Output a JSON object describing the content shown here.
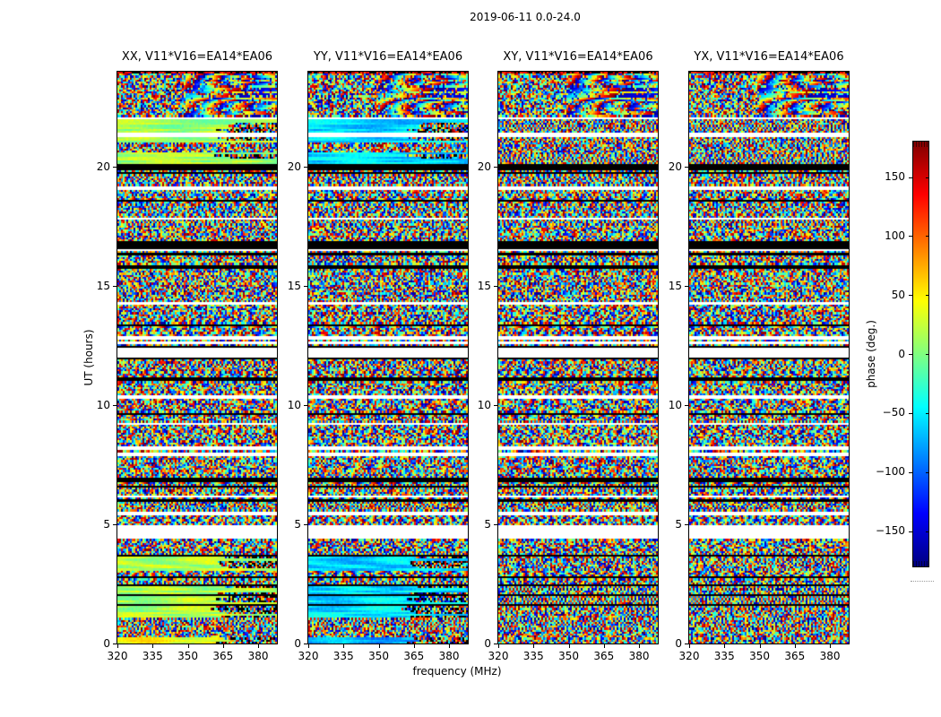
{
  "figure": {
    "title": "2019-06-11 0.0-24.0"
  },
  "axes": {
    "xlabel": "frequency (MHz)",
    "ylabel": "UT (hours)",
    "x_ticks": [
      "320",
      "335",
      "350",
      "365",
      "380"
    ],
    "y_ticks": [
      "0",
      "5",
      "10",
      "15",
      "20"
    ]
  },
  "panels": [
    {
      "title": "XX, V11*V16=EA14*EA06",
      "pol": "XX"
    },
    {
      "title": "YY, V11*V16=EA14*EA06",
      "pol": "YY"
    },
    {
      "title": "XY, V11*V16=EA14*EA06",
      "pol": "XY"
    },
    {
      "title": "YX, V11*V16=EA14*EA06",
      "pol": "YX"
    }
  ],
  "colorbar": {
    "label": "phase (deg.)",
    "ticks": [
      "150",
      "100",
      "50",
      "0",
      "−50",
      "−100",
      "−150"
    ],
    "tick_values": [
      150,
      100,
      50,
      0,
      -50,
      -100,
      -150
    ],
    "colormap": "jet",
    "vmin_deg": -180,
    "vmax_deg": 180
  },
  "chart_data": {
    "type": "heatmap",
    "title": "2019-06-11 0.0-24.0",
    "xlabel": "frequency (MHz)",
    "ylabel": "UT (hours)",
    "x_range_mhz": [
      320,
      388
    ],
    "y_range_hours": [
      0,
      24
    ],
    "x_ticks_mhz": [
      320,
      335,
      350,
      365,
      380
    ],
    "y_ticks_hours": [
      0,
      5,
      10,
      15,
      20
    ],
    "colormap": "jet",
    "clim_deg": [
      -180,
      180
    ],
    "value_quantity": "visibility phase (deg.)",
    "baseline": "V11*V16=EA14*EA06",
    "date": "2019-06-11",
    "time_span_hours": "0.0-24.0",
    "panel_labels": [
      "XX, V11*V16=EA14*EA06",
      "YY, V11*V16=EA14*EA06",
      "XY, V11*V16=EA14*EA06",
      "YX, V11*V16=EA14*EA06"
    ],
    "features": [
      {
        "from": 0.0,
        "to": 0.25,
        "type": "band",
        "xx": 40,
        "yy": -75
      },
      {
        "from": 0.25,
        "to": 1.05,
        "type": "noise"
      },
      {
        "from": 1.05,
        "to": 2.4,
        "type": "band",
        "xx": 15,
        "yy": -55
      },
      {
        "from": 1.55,
        "to": 1.63,
        "type": "black"
      },
      {
        "from": 1.95,
        "to": 2.02,
        "type": "black"
      },
      {
        "from": 2.4,
        "to": 2.52,
        "type": "black"
      },
      {
        "from": 2.52,
        "to": 3.05,
        "type": "noise"
      },
      {
        "from": 3.05,
        "to": 3.62,
        "type": "band",
        "xx": 18,
        "yy": -60
      },
      {
        "from": 3.62,
        "to": 3.7,
        "type": "black"
      },
      {
        "from": 3.7,
        "to": 4.38,
        "type": "noise"
      },
      {
        "from": 4.38,
        "to": 4.95,
        "type": "white"
      },
      {
        "from": 4.95,
        "to": 12.0,
        "type": "noise"
      },
      {
        "from": 5.42,
        "to": 5.5,
        "type": "white"
      },
      {
        "from": 6.1,
        "to": 6.17,
        "type": "white"
      },
      {
        "from": 6.8,
        "to": 6.87,
        "type": "black"
      },
      {
        "from": 7.9,
        "to": 7.97,
        "type": "white"
      },
      {
        "from": 8.15,
        "to": 8.21,
        "type": "white"
      },
      {
        "from": 9.6,
        "to": 9.67,
        "type": "black"
      },
      {
        "from": 10.3,
        "to": 10.37,
        "type": "white"
      },
      {
        "from": 11.0,
        "to": 11.1,
        "type": "black"
      },
      {
        "from": 11.9,
        "to": 12.0,
        "type": "black"
      },
      {
        "from": 12.0,
        "to": 12.38,
        "type": "white"
      },
      {
        "from": 12.38,
        "to": 12.48,
        "type": "black"
      },
      {
        "from": 12.48,
        "to": 16.3,
        "type": "noise"
      },
      {
        "from": 13.3,
        "to": 13.38,
        "type": "black"
      },
      {
        "from": 14.2,
        "to": 14.27,
        "type": "white"
      },
      {
        "from": 16.3,
        "to": 16.4,
        "type": "black"
      },
      {
        "from": 16.4,
        "to": 16.55,
        "type": "noise"
      },
      {
        "from": 16.55,
        "to": 16.85,
        "type": "black"
      },
      {
        "from": 16.85,
        "to": 19.85,
        "type": "noise"
      },
      {
        "from": 17.8,
        "to": 17.87,
        "type": "white"
      },
      {
        "from": 18.5,
        "to": 18.57,
        "type": "black"
      },
      {
        "from": 19.05,
        "to": 19.12,
        "type": "white"
      },
      {
        "from": 19.85,
        "to": 20.15,
        "type": "black"
      },
      {
        "from": 20.15,
        "to": 22.0,
        "type": "band",
        "xx": 12,
        "yy": -58
      },
      {
        "from": 20.6,
        "to": 20.95,
        "type": "noise"
      },
      {
        "from": 21.3,
        "to": 21.36,
        "type": "white"
      },
      {
        "from": 22.0,
        "to": 22.1,
        "type": "white"
      },
      {
        "from": 22.1,
        "to": 23.9,
        "type": "fringemix"
      },
      {
        "from": 23.9,
        "to": 24.0,
        "type": "darkstripe"
      }
    ]
  }
}
